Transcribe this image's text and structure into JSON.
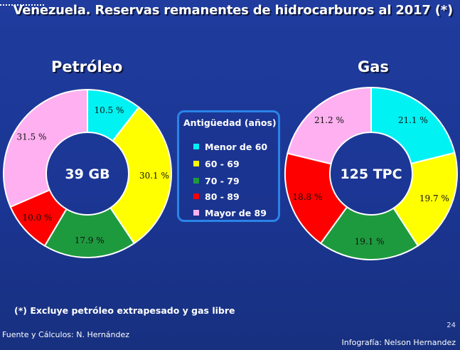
{
  "title": "Venezuela. Reservas remanentes de hidrocarburos al 2017 (*)",
  "legend_title": "Antigüedad (años)",
  "note": "(*) Excluye petróleo extrapesado y gas libre",
  "source": "Fuente y Cálculos: N. Hernández",
  "credit": "Infografía: Nelson Hernandez",
  "page_number": "24",
  "colors": {
    "cyan": "#00f2f2",
    "yellow": "#ffff00",
    "green": "#1e9a3e",
    "red": "#ff0000",
    "pink": "#ffb0f0"
  },
  "chart_data": [
    {
      "type": "pie",
      "variant": "donut",
      "title": "Petróleo",
      "center_label": "39 GB",
      "categories": [
        "Menor de 60",
        "60 - 69",
        "70 - 79",
        "80 - 89",
        "Mayor de 89"
      ],
      "values": [
        10.5,
        30.1,
        17.9,
        10.0,
        31.5
      ],
      "labels": [
        "10.5 %",
        "30.1 %",
        "17.9 %",
        "10.0 %",
        "31.5 %"
      ]
    },
    {
      "type": "pie",
      "variant": "donut",
      "title": "Gas",
      "center_label": "125 TPC",
      "categories": [
        "Menor de 60",
        "60 - 69",
        "70 - 79",
        "80 - 89",
        "Mayor de 89"
      ],
      "values": [
        21.1,
        19.7,
        19.1,
        18.8,
        21.2
      ],
      "labels": [
        "21.1 %",
        "19.7 %",
        "19.1 %",
        "18.8 %",
        "21.2 %"
      ]
    }
  ]
}
